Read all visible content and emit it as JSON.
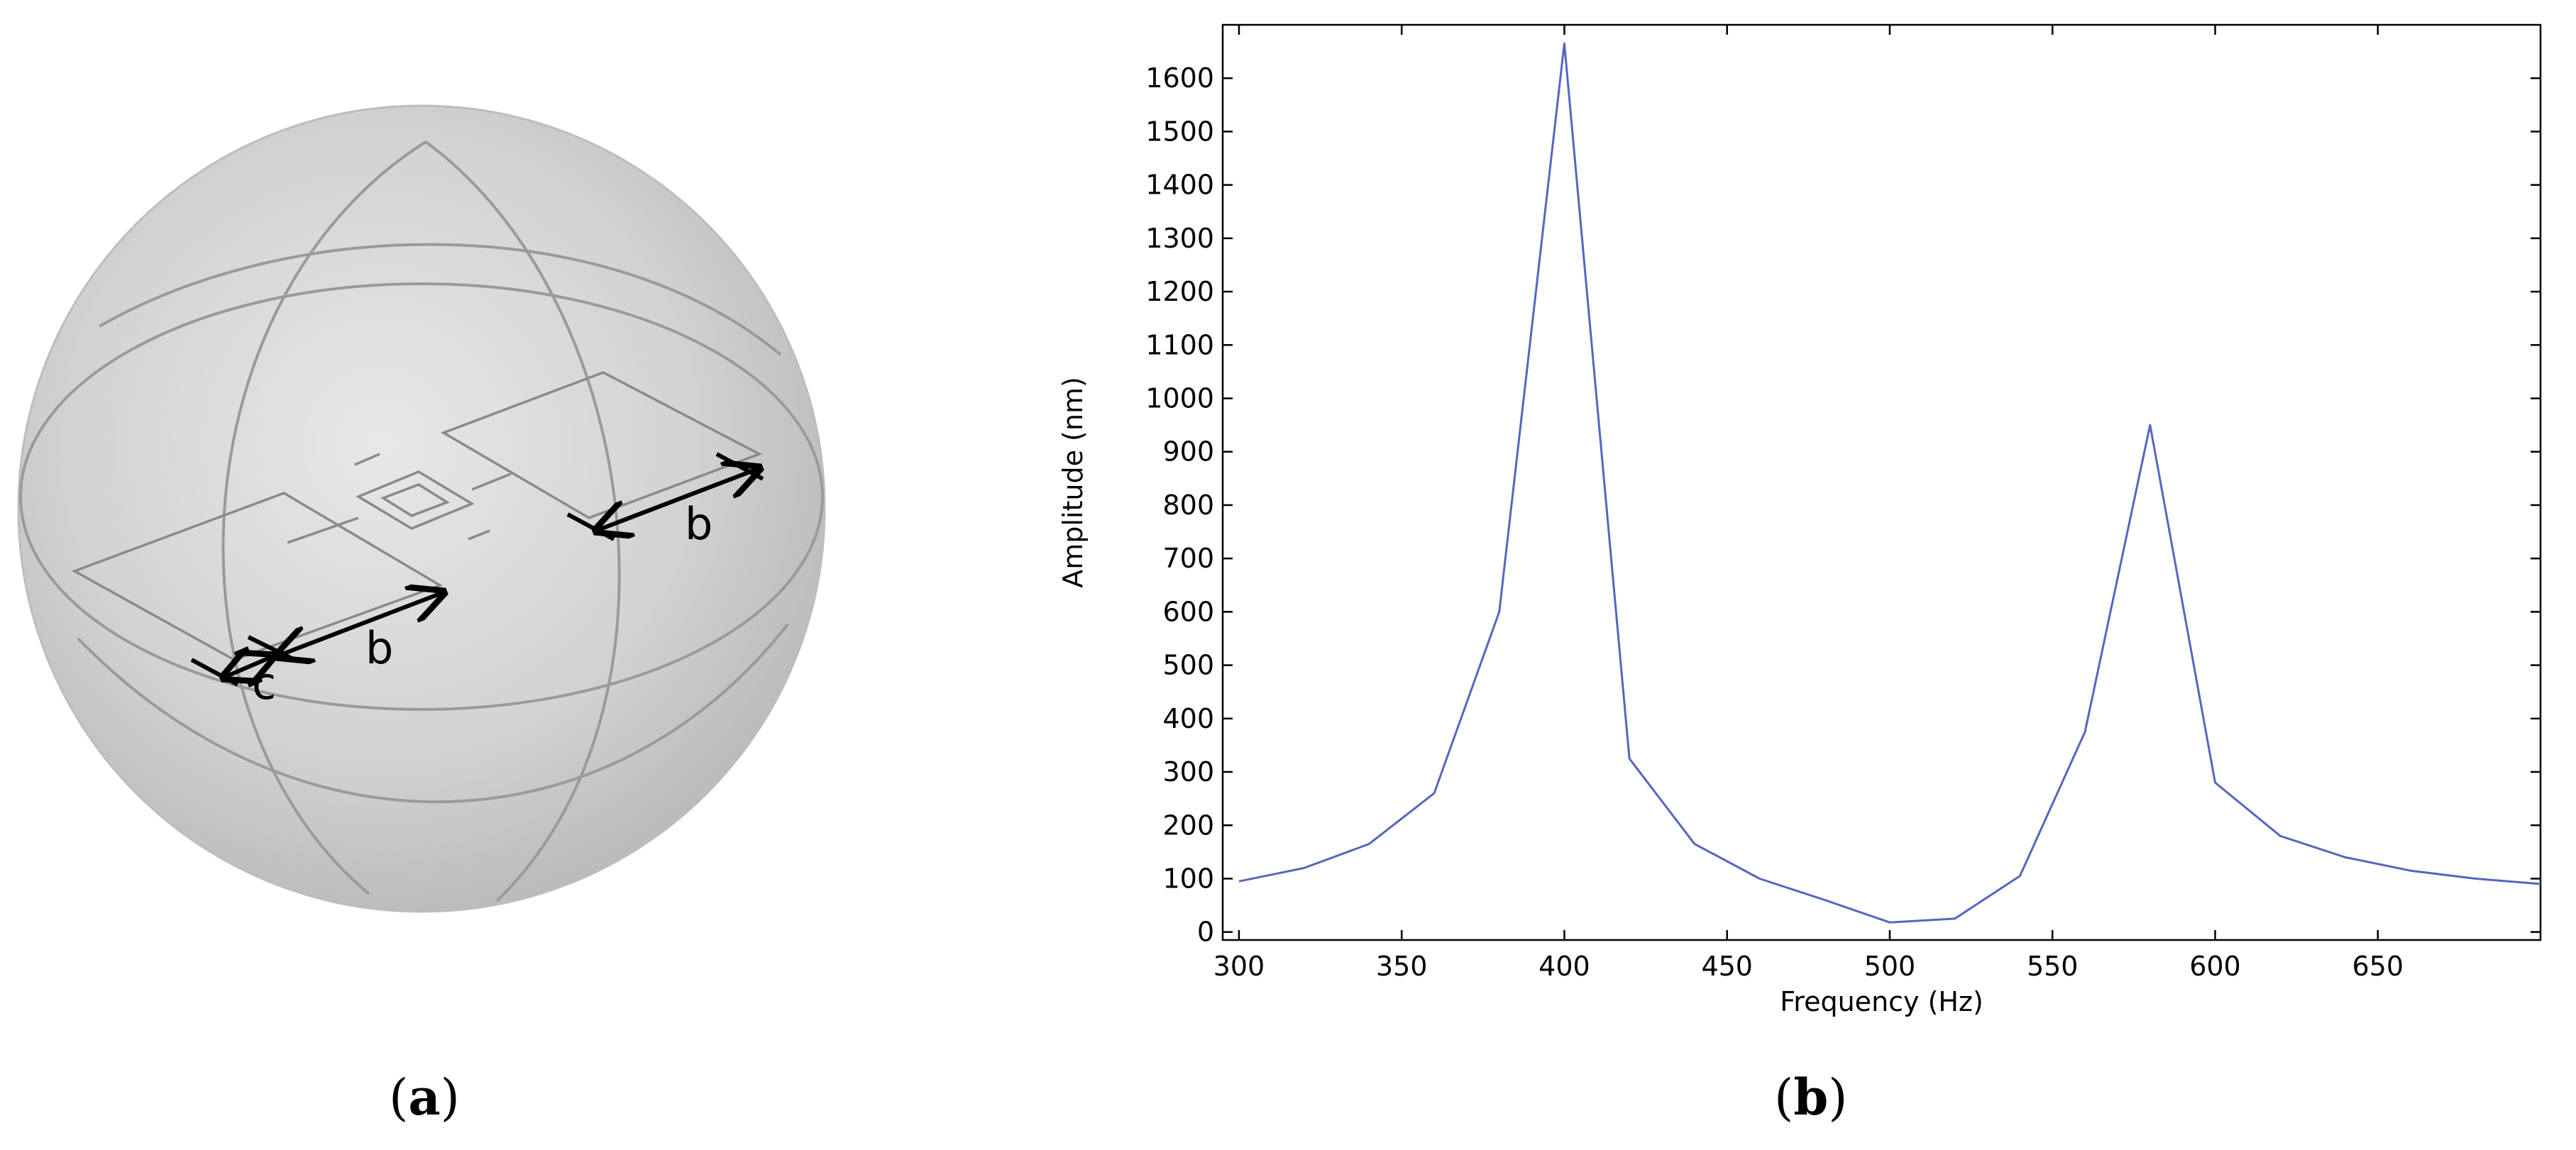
{
  "panel_a": {
    "dimension_labels": {
      "c": "c",
      "b1": "b",
      "b2": "b"
    }
  },
  "captions": {
    "a": {
      "open": "(",
      "letter": "a",
      "close": ")"
    },
    "b": {
      "open": "(",
      "letter": "b",
      "close": ")"
    }
  },
  "colors": {
    "series_line": "#5566c0",
    "sphere_fill": "#cccccc",
    "axis": "#000000"
  },
  "chart_data": {
    "type": "line",
    "title": "",
    "xlabel": "Frequency (Hz)",
    "ylabel": "Amplitude (nm)",
    "xlim": [
      295,
      700
    ],
    "ylim": [
      -15,
      1700
    ],
    "xticks": [
      300,
      350,
      400,
      450,
      500,
      550,
      600,
      650
    ],
    "yticks": [
      0,
      100,
      200,
      300,
      400,
      500,
      600,
      700,
      800,
      900,
      1000,
      1100,
      1200,
      1300,
      1400,
      1500,
      1600
    ],
    "grid": false,
    "legend": "none",
    "series": [
      {
        "x": [
          300,
          320,
          340,
          360,
          380,
          400,
          420,
          440,
          460,
          480,
          500,
          520,
          540,
          560,
          580,
          600,
          620,
          640,
          660,
          680,
          700
        ],
        "y": [
          95,
          120,
          165,
          260,
          600,
          1665,
          325,
          165,
          100,
          60,
          18,
          25,
          105,
          375,
          950,
          280,
          180,
          140,
          115,
          100,
          90
        ]
      }
    ]
  }
}
